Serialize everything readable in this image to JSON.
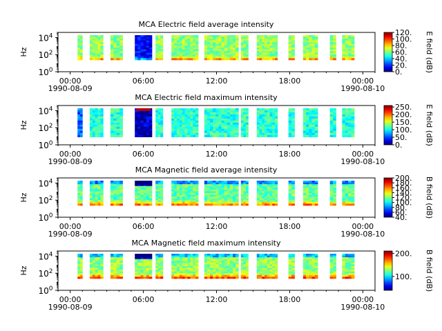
{
  "chart_data": [
    {
      "type": "heatmap",
      "title": "MCA  Electric field average intensity",
      "ylabel": "Hz",
      "yscale": "log",
      "ylim": [
        1,
        40000
      ],
      "y_ticks": [
        {
          "base": "10",
          "exp": "0"
        },
        {
          "base": "10",
          "exp": "2"
        },
        {
          "base": "10",
          "exp": "4"
        }
      ],
      "x_ticks": [
        {
          "time": "00:00",
          "date": "1990-08-09"
        },
        {
          "time": "06:00",
          "date": ""
        },
        {
          "time": "12:00",
          "date": ""
        },
        {
          "time": "18:00",
          "date": ""
        },
        {
          "time": "00:00",
          "date": "1990-08-10"
        }
      ],
      "xlim_hours": [
        -1,
        25
      ],
      "colorbar": {
        "label": "E field (dB)",
        "range": [
          0,
          120
        ],
        "ticks": [
          "0.",
          "20.",
          "40.",
          "60.",
          "80.",
          "100.",
          "120."
        ]
      },
      "fill_start": 0.3,
      "data_segments_hours": [
        [
          0.6,
          1.0
        ],
        [
          1.6,
          2.7
        ],
        [
          3.3,
          4.3
        ],
        [
          5.3,
          6.7
        ],
        [
          7.0,
          7.6
        ],
        [
          8.3,
          10.5
        ],
        [
          11.0,
          13.8
        ],
        [
          14.0,
          14.6
        ],
        [
          15.3,
          17.0
        ],
        [
          17.9,
          18.4
        ],
        [
          19.1,
          20.3
        ],
        [
          21.3,
          21.8
        ],
        [
          22.3,
          23.3
        ]
      ],
      "series": []
    },
    {
      "type": "heatmap",
      "title": "MCA  Electric field maximum intensity",
      "ylabel": "Hz",
      "yscale": "log",
      "ylim": [
        1,
        40000
      ],
      "y_ticks": [
        {
          "base": "10",
          "exp": "0"
        },
        {
          "base": "10",
          "exp": "2"
        },
        {
          "base": "10",
          "exp": "4"
        }
      ],
      "x_ticks": [
        {
          "time": "00:00",
          "date": "1990-08-09"
        },
        {
          "time": "06:00",
          "date": ""
        },
        {
          "time": "12:00",
          "date": ""
        },
        {
          "time": "18:00",
          "date": ""
        },
        {
          "time": "00:00",
          "date": "1990-08-10"
        }
      ],
      "xlim_hours": [
        -1,
        25
      ],
      "colorbar": {
        "label": "E field (dB)",
        "range": [
          0,
          260
        ],
        "ticks": [
          "0.",
          "50.",
          "100.",
          "150.",
          "200.",
          "250."
        ]
      },
      "fill_start": 0.2,
      "data_segments_hours": [
        [
          0.6,
          1.0
        ],
        [
          1.6,
          2.7
        ],
        [
          3.3,
          4.3
        ],
        [
          5.3,
          6.7
        ],
        [
          7.0,
          7.6
        ],
        [
          8.3,
          10.5
        ],
        [
          11.0,
          13.8
        ],
        [
          14.0,
          14.6
        ],
        [
          15.3,
          17.0
        ],
        [
          17.9,
          18.4
        ],
        [
          19.1,
          20.3
        ],
        [
          21.3,
          21.8
        ],
        [
          22.3,
          23.3
        ]
      ],
      "series": []
    },
    {
      "type": "heatmap",
      "title": "MCA  Magnetic field average intensity",
      "ylabel": "Hz",
      "yscale": "log",
      "ylim": [
        1,
        40000
      ],
      "y_ticks": [
        {
          "base": "10",
          "exp": "0"
        },
        {
          "base": "10",
          "exp": "2"
        },
        {
          "base": "10",
          "exp": "4"
        }
      ],
      "x_ticks": [
        {
          "time": "00:00",
          "date": "1990-08-09"
        },
        {
          "time": "06:00",
          "date": ""
        },
        {
          "time": "12:00",
          "date": ""
        },
        {
          "time": "18:00",
          "date": ""
        },
        {
          "time": "00:00",
          "date": "1990-08-10"
        }
      ],
      "xlim_hours": [
        -1,
        25
      ],
      "colorbar": {
        "label": "B field (dB)",
        "range": [
          40,
          200
        ],
        "ticks": [
          "40.",
          "60.",
          "80.",
          "100.",
          "120.",
          "140.",
          "160.",
          "180.",
          "200."
        ]
      },
      "fill_start": 0.3,
      "data_segments_hours": [
        [
          0.6,
          1.0
        ],
        [
          1.6,
          2.7
        ],
        [
          3.3,
          4.3
        ],
        [
          5.3,
          6.7
        ],
        [
          7.0,
          7.6
        ],
        [
          8.3,
          10.5
        ],
        [
          11.0,
          13.8
        ],
        [
          14.0,
          14.6
        ],
        [
          15.3,
          17.0
        ],
        [
          17.9,
          18.4
        ],
        [
          19.1,
          20.3
        ],
        [
          21.3,
          21.8
        ],
        [
          22.3,
          23.3
        ]
      ],
      "series": []
    },
    {
      "type": "heatmap",
      "title": "MCA  Magnetic field maximum intensity",
      "ylabel": "Hz",
      "yscale": "log",
      "ylim": [
        1,
        40000
      ],
      "y_ticks": [
        {
          "base": "10",
          "exp": "0"
        },
        {
          "base": "10",
          "exp": "2"
        },
        {
          "base": "10",
          "exp": "4"
        }
      ],
      "x_ticks": [
        {
          "time": "00:00",
          "date": "1990-08-09"
        },
        {
          "time": "06:00",
          "date": ""
        },
        {
          "time": "12:00",
          "date": ""
        },
        {
          "time": "18:00",
          "date": ""
        },
        {
          "time": "00:00",
          "date": "1990-08-10"
        }
      ],
      "xlim_hours": [
        -1,
        25
      ],
      "colorbar": {
        "label": "B field (dB)",
        "range": [
          40,
          210
        ],
        "ticks": [
          "100.",
          "200."
        ]
      },
      "fill_start": 0.3,
      "data_segments_hours": [
        [
          0.6,
          1.0
        ],
        [
          1.6,
          2.7
        ],
        [
          3.3,
          4.3
        ],
        [
          5.3,
          6.7
        ],
        [
          7.0,
          7.6
        ],
        [
          8.3,
          10.5
        ],
        [
          11.0,
          13.8
        ],
        [
          14.0,
          14.6
        ],
        [
          15.3,
          17.0
        ],
        [
          17.9,
          18.4
        ],
        [
          19.1,
          20.3
        ],
        [
          21.3,
          21.8
        ],
        [
          22.3,
          23.3
        ]
      ],
      "series": []
    }
  ]
}
